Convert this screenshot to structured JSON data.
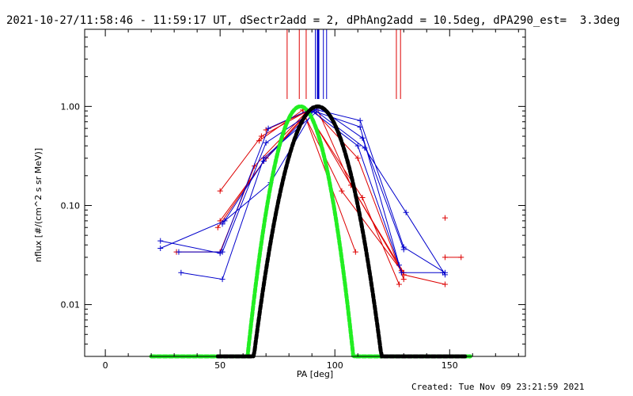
{
  "header": {
    "title": "2021-10-27/11:58:46 - 11:59:17 UT, dSectr2add = 2, dPhAng2add = 10.5deg, dPA290_est=  3.3deg"
  },
  "footer": {
    "created": "Created: Tue Nov 09 23:21:59 2021"
  },
  "chart_data": {
    "type": "line",
    "xlabel": "PA [deg]",
    "ylabel": "nflux [#/(cm^2 s sr MeV)]",
    "xlim": [
      -9,
      183
    ],
    "ylim": [
      0.003,
      6.0
    ],
    "yscale": "log",
    "x_ticks": [
      0,
      50,
      100,
      150
    ],
    "x_tick_labels": [
      "0",
      "50",
      "100",
      "150"
    ],
    "y_ticks": [
      0.01,
      0.1,
      1.0
    ],
    "y_tick_labels": [
      "0.01",
      "0.10",
      "1.00"
    ],
    "grid": false,
    "colors": {
      "red": "#dd0000",
      "blue": "#0000cc",
      "green": "#22ee22",
      "black": "#000000"
    },
    "vertical_markers": [
      {
        "x": 79.2,
        "color": "#dd0000",
        "width": 1
      },
      {
        "x": 84.5,
        "color": "#dd0000",
        "width": 1
      },
      {
        "x": 87.5,
        "color": "#dd0000",
        "width": 1
      },
      {
        "x": 91.5,
        "color": "#0000cc",
        "width": 1
      },
      {
        "x": 92.7,
        "color": "#0000cc",
        "width": 3
      },
      {
        "x": 95.0,
        "color": "#0000cc",
        "width": 1
      },
      {
        "x": 96.4,
        "color": "#0000cc",
        "width": 1
      },
      {
        "x": 126.8,
        "color": "#dd0000",
        "width": 1
      },
      {
        "x": 128.6,
        "color": "#dd0000",
        "width": 1
      }
    ],
    "series": [
      {
        "color": "#dd0000",
        "points": [
          [
            31,
            0.034
          ],
          [
            50,
            0.034
          ],
          [
            65,
            0.25
          ],
          [
            88,
            0.9
          ],
          [
            130,
            0.02
          ],
          [
            148,
            0.016
          ]
        ]
      },
      {
        "color": "#dd0000",
        "points": [
          [
            50,
            0.14
          ],
          [
            68,
            0.5
          ],
          [
            90,
            0.95
          ],
          [
            110,
            0.3
          ],
          [
            130,
            0.018
          ]
        ]
      },
      {
        "color": "#dd0000",
        "points": [
          [
            50,
            0.07
          ],
          [
            70,
            0.3
          ],
          [
            88,
            0.87
          ],
          [
            112,
            0.12
          ],
          [
            128,
            0.016
          ]
        ]
      },
      {
        "color": "#dd0000",
        "points": [
          [
            49,
            0.06
          ],
          [
            69,
            0.28
          ],
          [
            87,
            0.8
          ],
          [
            103,
            0.14
          ],
          [
            129,
            0.022
          ]
        ]
      },
      {
        "color": "#dd0000",
        "points": [
          [
            67,
            0.45
          ],
          [
            86,
            0.92
          ],
          [
            109,
            0.034
          ]
        ]
      },
      {
        "color": "#dd0000",
        "points": [
          [
            70,
            0.58
          ],
          [
            92,
            0.98
          ],
          [
            107,
            0.16
          ],
          [
            130,
            0.021
          ]
        ]
      },
      {
        "color": "#dd0000",
        "points": [
          [
            148,
            0.075
          ]
        ]
      },
      {
        "color": "#dd0000",
        "points": [
          [
            148,
            0.03
          ],
          [
            155,
            0.03
          ]
        ]
      },
      {
        "color": "#0000cc",
        "points": [
          [
            24,
            0.044
          ],
          [
            50,
            0.033
          ],
          [
            71,
            0.6
          ],
          [
            90,
            0.95
          ],
          [
            111,
            0.72
          ],
          [
            130,
            0.038
          ],
          [
            148,
            0.021
          ]
        ]
      },
      {
        "color": "#0000cc",
        "points": [
          [
            24,
            0.037
          ],
          [
            52,
            0.07
          ],
          [
            72,
            0.17
          ],
          [
            91,
            0.93
          ],
          [
            113,
            0.38
          ],
          [
            131,
            0.085
          ],
          [
            148,
            0.02
          ]
        ]
      },
      {
        "color": "#0000cc",
        "points": [
          [
            33,
            0.021
          ],
          [
            51,
            0.018
          ],
          [
            69,
            0.3
          ],
          [
            92,
            0.88
          ],
          [
            111,
            0.62
          ],
          [
            129,
            0.021
          ],
          [
            147,
            0.021
          ]
        ]
      },
      {
        "color": "#0000cc",
        "points": [
          [
            32,
            0.034
          ],
          [
            51,
            0.034
          ],
          [
            70,
            0.43
          ],
          [
            93,
            0.97
          ],
          [
            112,
            0.48
          ],
          [
            130,
            0.036
          ]
        ]
      },
      {
        "color": "#0000cc",
        "points": [
          [
            51,
            0.065
          ],
          [
            69,
            0.28
          ],
          [
            90,
            0.9
          ],
          [
            110,
            0.4
          ],
          [
            128,
            0.025
          ]
        ]
      }
    ],
    "fits": [
      {
        "color": "#22ee22",
        "style": "dashed",
        "center": 85,
        "peak": 1.0,
        "width": 14.5,
        "xrange": [
          20,
          159
        ]
      },
      {
        "color": "#000000",
        "style": "dashed",
        "center": 92.5,
        "peak": 1.0,
        "width": 17.5,
        "xrange": [
          49,
          157
        ]
      }
    ]
  }
}
